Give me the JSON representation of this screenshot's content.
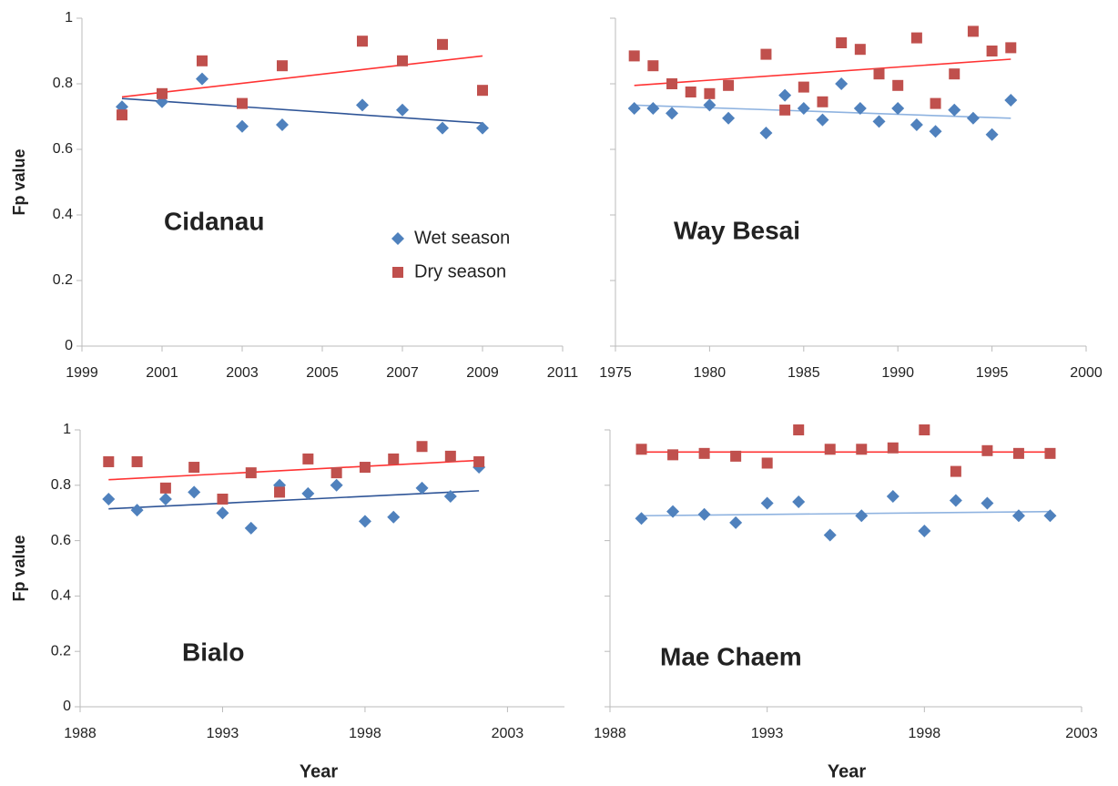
{
  "chart_data": [
    {
      "type": "scatter",
      "annotation": "Cidanau",
      "y_label": "Fp value",
      "legend": "center-right",
      "xlim": [
        1999,
        2011
      ],
      "xticks": [
        1999,
        2001,
        2003,
        2005,
        2007,
        2009,
        2011
      ],
      "ylim": [
        0,
        1
      ],
      "yticks": [
        0,
        0.2,
        0.4,
        0.6,
        0.8,
        1
      ],
      "ytick_labels": true,
      "series": [
        {
          "name": "Wet season",
          "color": "#4f81bd",
          "marker": "diamond",
          "trend_color": "#2f5597",
          "x": [
            2000,
            2001,
            2002,
            2003,
            2004,
            2006,
            2007,
            2008,
            2009
          ],
          "values": [
            0.73,
            0.745,
            0.815,
            0.67,
            0.675,
            0.735,
            0.72,
            0.665,
            0.665
          ],
          "trend": [
            0.755,
            0.68
          ]
        },
        {
          "name": "Dry season",
          "color": "#c0504d",
          "marker": "square",
          "trend_color": "#ff3333",
          "x": [
            2000,
            2001,
            2002,
            2003,
            2004,
            2006,
            2007,
            2008,
            2009
          ],
          "values": [
            0.705,
            0.77,
            0.87,
            0.74,
            0.855,
            0.93,
            0.87,
            0.92,
            0.78
          ],
          "trend": [
            0.76,
            0.885
          ]
        }
      ]
    },
    {
      "type": "scatter",
      "annotation": "Way Besai",
      "xlim": [
        1975,
        2000
      ],
      "xticks": [
        1975,
        1980,
        1985,
        1990,
        1995,
        2000
      ],
      "ylim": [
        0,
        1
      ],
      "yticks": [
        0,
        0.2,
        0.4,
        0.6,
        0.8,
        1
      ],
      "ytick_labels": false,
      "series": [
        {
          "name": "Wet season",
          "color": "#4f81bd",
          "marker": "diamond",
          "trend_color": "#8fb3e0",
          "x": [
            1976,
            1977,
            1978,
            1980,
            1981,
            1983,
            1984,
            1985,
            1986,
            1987,
            1988,
            1989,
            1990,
            1991,
            1992,
            1993,
            1994,
            1995,
            1996
          ],
          "values": [
            0.725,
            0.725,
            0.71,
            0.735,
            0.695,
            0.65,
            0.765,
            0.725,
            0.69,
            0.8,
            0.725,
            0.685,
            0.725,
            0.675,
            0.655,
            0.72,
            0.695,
            0.645,
            0.75
          ],
          "trend": [
            0.735,
            0.695
          ]
        },
        {
          "name": "Dry season",
          "color": "#c0504d",
          "marker": "square",
          "trend_color": "#ff3333",
          "x": [
            1976,
            1977,
            1978,
            1979,
            1980,
            1981,
            1983,
            1984,
            1985,
            1986,
            1987,
            1988,
            1989,
            1990,
            1991,
            1992,
            1993,
            1994,
            1995,
            1996
          ],
          "values": [
            0.885,
            0.855,
            0.8,
            0.775,
            0.77,
            0.795,
            0.89,
            0.72,
            0.79,
            0.745,
            0.925,
            0.905,
            0.83,
            0.795,
            0.94,
            0.74,
            0.83,
            0.96,
            0.9,
            0.91
          ],
          "trend": [
            0.795,
            0.875
          ]
        }
      ]
    },
    {
      "type": "scatter",
      "annotation": "Bialo",
      "y_label": "Fp value",
      "x_label": "Year",
      "xlim": [
        1988,
        2005
      ],
      "xticks": [
        1988,
        1993,
        1998,
        2003
      ],
      "ylim": [
        0,
        1
      ],
      "yticks": [
        0,
        0.2,
        0.4,
        0.6,
        0.8,
        1
      ],
      "ytick_labels": true,
      "series": [
        {
          "name": "Wet season",
          "color": "#4f81bd",
          "marker": "diamond",
          "trend_color": "#2f5597",
          "x": [
            1989,
            1990,
            1991,
            1992,
            1993,
            1994,
            1995,
            1996,
            1997,
            1998,
            1999,
            2000,
            2001,
            2002
          ],
          "values": [
            0.75,
            0.71,
            0.75,
            0.775,
            0.7,
            0.645,
            0.8,
            0.77,
            0.8,
            0.67,
            0.685,
            0.79,
            0.76,
            0.865
          ],
          "trend": [
            0.715,
            0.78
          ]
        },
        {
          "name": "Dry season",
          "color": "#c0504d",
          "marker": "square",
          "trend_color": "#ff3333",
          "x": [
            1989,
            1990,
            1991,
            1992,
            1993,
            1994,
            1995,
            1996,
            1997,
            1998,
            1999,
            2000,
            2001,
            2002
          ],
          "values": [
            0.885,
            0.885,
            0.79,
            0.865,
            0.75,
            0.845,
            0.775,
            0.895,
            0.845,
            0.865,
            0.895,
            0.94,
            0.905,
            0.885
          ],
          "trend": [
            0.82,
            0.89
          ]
        }
      ]
    },
    {
      "type": "scatter",
      "annotation": "Mae Chaem",
      "x_label": "Year",
      "xlim": [
        1988,
        2003
      ],
      "xticks": [
        1988,
        1993,
        1998,
        2003
      ],
      "ylim": [
        0,
        1
      ],
      "yticks": [
        0,
        0.2,
        0.4,
        0.6,
        0.8,
        1
      ],
      "ytick_labels": false,
      "series": [
        {
          "name": "Wet season",
          "color": "#4f81bd",
          "marker": "diamond",
          "trend_color": "#8fb3e0",
          "x": [
            1989,
            1990,
            1991,
            1992,
            1993,
            1994,
            1995,
            1996,
            1997,
            1998,
            1999,
            2000,
            2001,
            2002
          ],
          "values": [
            0.68,
            0.705,
            0.695,
            0.665,
            0.735,
            0.74,
            0.62,
            0.69,
            0.76,
            0.635,
            0.745,
            0.735,
            0.69,
            0.69
          ],
          "trend": [
            0.69,
            0.705
          ]
        },
        {
          "name": "Dry season",
          "color": "#c0504d",
          "marker": "square",
          "trend_color": "#ff3333",
          "x": [
            1989,
            1990,
            1991,
            1992,
            1993,
            1994,
            1995,
            1996,
            1997,
            1998,
            1999,
            2000,
            2001,
            2002
          ],
          "values": [
            0.93,
            0.91,
            0.915,
            0.905,
            0.88,
            1,
            0.93,
            0.93,
            0.935,
            1,
            0.85,
            0.925,
            0.915,
            0.915
          ],
          "trend": [
            0.92,
            0.92
          ]
        }
      ]
    }
  ]
}
